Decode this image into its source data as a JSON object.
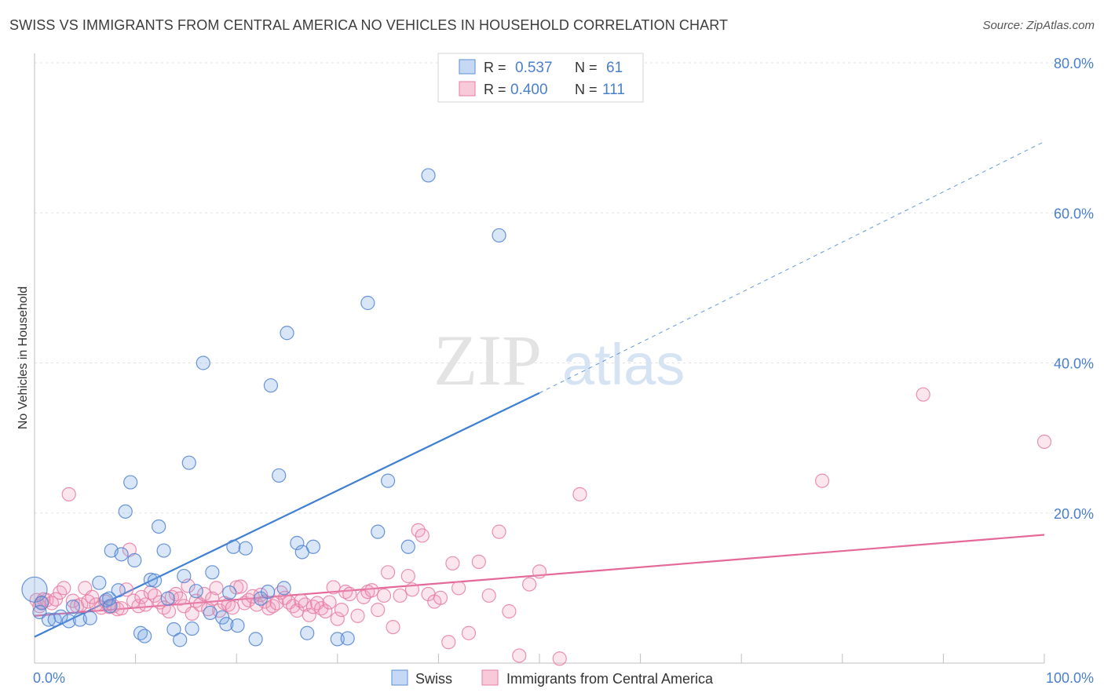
{
  "title": "SWISS VS IMMIGRANTS FROM CENTRAL AMERICA NO VEHICLES IN HOUSEHOLD CORRELATION CHART",
  "source": "Source: ZipAtlas.com",
  "watermark": {
    "zip": "ZIP",
    "atlas": "atlas"
  },
  "colors": {
    "swiss": "#5b8fd6",
    "central_america": "#e87ca3",
    "axis_text": "#4a7fcc"
  },
  "legend_top": {
    "r_label": "R =",
    "n_label": "N =",
    "swiss": {
      "r": "0.537",
      "n": "61"
    },
    "central_america": {
      "r": "0.400",
      "n": "111"
    }
  },
  "legend_bottom": {
    "swiss": "Swiss",
    "central_america": "Immigrants from Central America"
  },
  "chart_data": {
    "type": "scatter",
    "xlabel": "",
    "ylabel": "No Vehicles in Household",
    "xlim": [
      0,
      100
    ],
    "ylim": [
      0,
      80
    ],
    "x_tick_labels": [
      {
        "value": 0,
        "label": "0.0%"
      },
      {
        "value": 100,
        "label": "100.0%"
      }
    ],
    "y_tick_labels": [
      {
        "value": 20,
        "label": "20.0%"
      },
      {
        "value": 40,
        "label": "40.0%"
      },
      {
        "value": 60,
        "label": "60.0%"
      },
      {
        "value": 80,
        "label": "80.0%"
      }
    ],
    "grid": true,
    "series": [
      {
        "name": "Swiss",
        "points": [
          [
            0.0,
            9.8
          ],
          [
            0.5,
            6.8
          ],
          [
            1.4,
            5.8
          ],
          [
            2.0,
            5.8
          ],
          [
            2.6,
            6.2
          ],
          [
            3.4,
            5.6
          ],
          [
            3.8,
            7.5
          ],
          [
            4.5,
            5.8
          ],
          [
            5.5,
            6.0
          ],
          [
            6.4,
            10.7
          ],
          [
            7.1,
            8.4
          ],
          [
            7.4,
            8.6
          ],
          [
            7.5,
            7.6
          ],
          [
            7.6,
            15.0
          ],
          [
            8.3,
            9.7
          ],
          [
            8.6,
            14.5
          ],
          [
            9.0,
            20.2
          ],
          [
            9.5,
            24.1
          ],
          [
            9.9,
            13.7
          ],
          [
            10.5,
            4.0
          ],
          [
            10.9,
            3.6
          ],
          [
            11.5,
            11.1
          ],
          [
            11.9,
            11.0
          ],
          [
            12.3,
            18.2
          ],
          [
            12.8,
            15.0
          ],
          [
            13.2,
            8.6
          ],
          [
            13.8,
            4.5
          ],
          [
            14.4,
            3.1
          ],
          [
            14.8,
            11.6
          ],
          [
            15.3,
            26.7
          ],
          [
            15.6,
            4.6
          ],
          [
            16.0,
            9.6
          ],
          [
            16.7,
            40.0
          ],
          [
            17.4,
            6.7
          ],
          [
            17.6,
            12.1
          ],
          [
            18.6,
            6.1
          ],
          [
            19.0,
            5.2
          ],
          [
            19.3,
            9.4
          ],
          [
            19.7,
            15.5
          ],
          [
            20.1,
            5.0
          ],
          [
            20.9,
            15.3
          ],
          [
            21.9,
            3.2
          ],
          [
            22.4,
            8.6
          ],
          [
            23.1,
            9.5
          ],
          [
            23.4,
            37.0
          ],
          [
            24.2,
            25.0
          ],
          [
            24.7,
            10.0
          ],
          [
            25.0,
            44.0
          ],
          [
            26.0,
            16.0
          ],
          [
            26.5,
            14.8
          ],
          [
            27.0,
            4.0
          ],
          [
            27.6,
            15.5
          ],
          [
            30.0,
            3.2
          ],
          [
            31.0,
            3.3
          ],
          [
            33.0,
            48.0
          ],
          [
            34.0,
            17.5
          ],
          [
            35.0,
            24.3
          ],
          [
            37.0,
            15.5
          ],
          [
            39.0,
            65.0
          ],
          [
            46.0,
            57.0
          ],
          [
            0.7,
            8.0
          ]
        ]
      },
      {
        "name": "Immigrants from Central America",
        "points": [
          [
            0.2,
            8.4
          ],
          [
            0.5,
            7.6
          ],
          [
            0.7,
            8.1
          ],
          [
            0.9,
            8.5
          ],
          [
            1.2,
            8.4
          ],
          [
            1.7,
            8.0
          ],
          [
            2.1,
            8.5
          ],
          [
            2.5,
            9.4
          ],
          [
            2.9,
            10.0
          ],
          [
            3.4,
            22.5
          ],
          [
            3.8,
            8.3
          ],
          [
            4.2,
            7.6
          ],
          [
            4.6,
            7.8
          ],
          [
            5.0,
            10.0
          ],
          [
            5.3,
            8.2
          ],
          [
            5.7,
            8.8
          ],
          [
            6.1,
            7.8
          ],
          [
            6.6,
            7.4
          ],
          [
            7.0,
            8.2
          ],
          [
            7.4,
            7.5
          ],
          [
            7.8,
            7.6
          ],
          [
            8.2,
            7.2
          ],
          [
            8.6,
            7.3
          ],
          [
            9.1,
            9.8
          ],
          [
            9.4,
            15.1
          ],
          [
            9.8,
            8.3
          ],
          [
            10.3,
            7.6
          ],
          [
            10.6,
            8.8
          ],
          [
            11.0,
            7.8
          ],
          [
            11.5,
            9.4
          ],
          [
            11.9,
            9.0
          ],
          [
            12.4,
            8.1
          ],
          [
            12.8,
            7.4
          ],
          [
            13.3,
            6.9
          ],
          [
            13.6,
            8.8
          ],
          [
            14.0,
            9.2
          ],
          [
            14.4,
            8.6
          ],
          [
            14.8,
            7.6
          ],
          [
            15.2,
            10.3
          ],
          [
            15.6,
            6.6
          ],
          [
            16.0,
            8.3
          ],
          [
            16.4,
            7.8
          ],
          [
            16.8,
            9.2
          ],
          [
            17.2,
            7.2
          ],
          [
            17.6,
            8.6
          ],
          [
            18.0,
            10.0
          ],
          [
            18.3,
            7.0
          ],
          [
            18.8,
            8.0
          ],
          [
            19.2,
            7.8
          ],
          [
            19.6,
            7.4
          ],
          [
            20.0,
            10.1
          ],
          [
            20.4,
            10.2
          ],
          [
            20.8,
            8.0
          ],
          [
            21.2,
            8.4
          ],
          [
            21.6,
            8.9
          ],
          [
            22.0,
            7.8
          ],
          [
            22.4,
            9.1
          ],
          [
            22.8,
            8.2
          ],
          [
            23.2,
            7.3
          ],
          [
            23.6,
            7.6
          ],
          [
            24.0,
            8.0
          ],
          [
            24.4,
            9.4
          ],
          [
            24.8,
            8.7
          ],
          [
            25.2,
            8.1
          ],
          [
            25.6,
            7.6
          ],
          [
            26.0,
            7.0
          ],
          [
            26.4,
            8.3
          ],
          [
            26.8,
            7.8
          ],
          [
            27.2,
            6.4
          ],
          [
            27.6,
            7.5
          ],
          [
            28.0,
            8.0
          ],
          [
            28.4,
            7.3
          ],
          [
            28.8,
            6.9
          ],
          [
            29.2,
            8.1
          ],
          [
            29.6,
            10.1
          ],
          [
            30.0,
            5.9
          ],
          [
            30.4,
            7.1
          ],
          [
            30.8,
            9.5
          ],
          [
            31.2,
            9.2
          ],
          [
            32.0,
            6.3
          ],
          [
            32.6,
            8.8
          ],
          [
            33.0,
            9.5
          ],
          [
            33.4,
            9.7
          ],
          [
            34.0,
            7.1
          ],
          [
            34.6,
            9.0
          ],
          [
            35.0,
            12.1
          ],
          [
            35.5,
            4.8
          ],
          [
            36.2,
            9.0
          ],
          [
            37.0,
            11.6
          ],
          [
            37.4,
            9.8
          ],
          [
            38.0,
            17.7
          ],
          [
            38.4,
            17.0
          ],
          [
            39.0,
            9.2
          ],
          [
            39.6,
            8.2
          ],
          [
            40.2,
            8.7
          ],
          [
            41.0,
            2.8
          ],
          [
            41.4,
            13.3
          ],
          [
            42.0,
            10.0
          ],
          [
            43.0,
            4.0
          ],
          [
            44.0,
            13.5
          ],
          [
            45.0,
            9.0
          ],
          [
            46.0,
            17.5
          ],
          [
            47.0,
            6.9
          ],
          [
            48.0,
            1.0
          ],
          [
            49.0,
            10.5
          ],
          [
            50.0,
            12.2
          ],
          [
            52.0,
            0.6
          ],
          [
            54.0,
            22.5
          ],
          [
            78.0,
            24.3
          ],
          [
            88.0,
            35.8
          ],
          [
            100.0,
            29.5
          ]
        ]
      }
    ],
    "trendlines": [
      {
        "name": "Swiss",
        "from": [
          0,
          3.5
        ],
        "to": [
          50,
          36.0
        ],
        "dashed_to": [
          100,
          69.5
        ]
      },
      {
        "name": "Immigrants from Central America",
        "from": [
          0,
          6.3
        ],
        "to": [
          100,
          17.1
        ]
      }
    ]
  }
}
